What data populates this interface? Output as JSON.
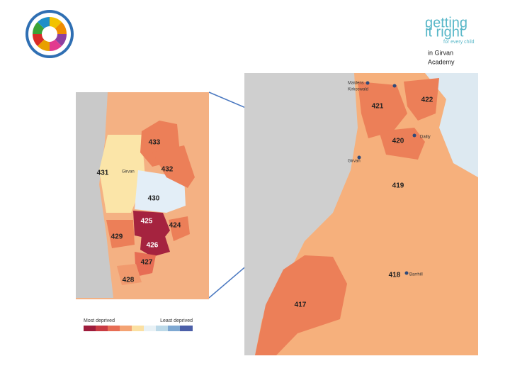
{
  "logo": {
    "lines": [
      "getting",
      "it right"
    ],
    "tagline": "for every child"
  },
  "location": [
    "in Girvan",
    "Academy"
  ],
  "left_map": {
    "zones": [
      "433",
      "431",
      "432",
      "430",
      "425",
      "424",
      "429",
      "426",
      "427",
      "428"
    ],
    "places": [
      "Girvan"
    ],
    "legend": {
      "low": "Most deprived",
      "high": "Least deprived"
    }
  },
  "right_map": {
    "zones": [
      "421",
      "422",
      "420",
      "419",
      "418",
      "417"
    ],
    "places": [
      "Maidens",
      "Kirkoswald",
      "Dailly",
      "Girvan",
      "Barrhill"
    ]
  }
}
